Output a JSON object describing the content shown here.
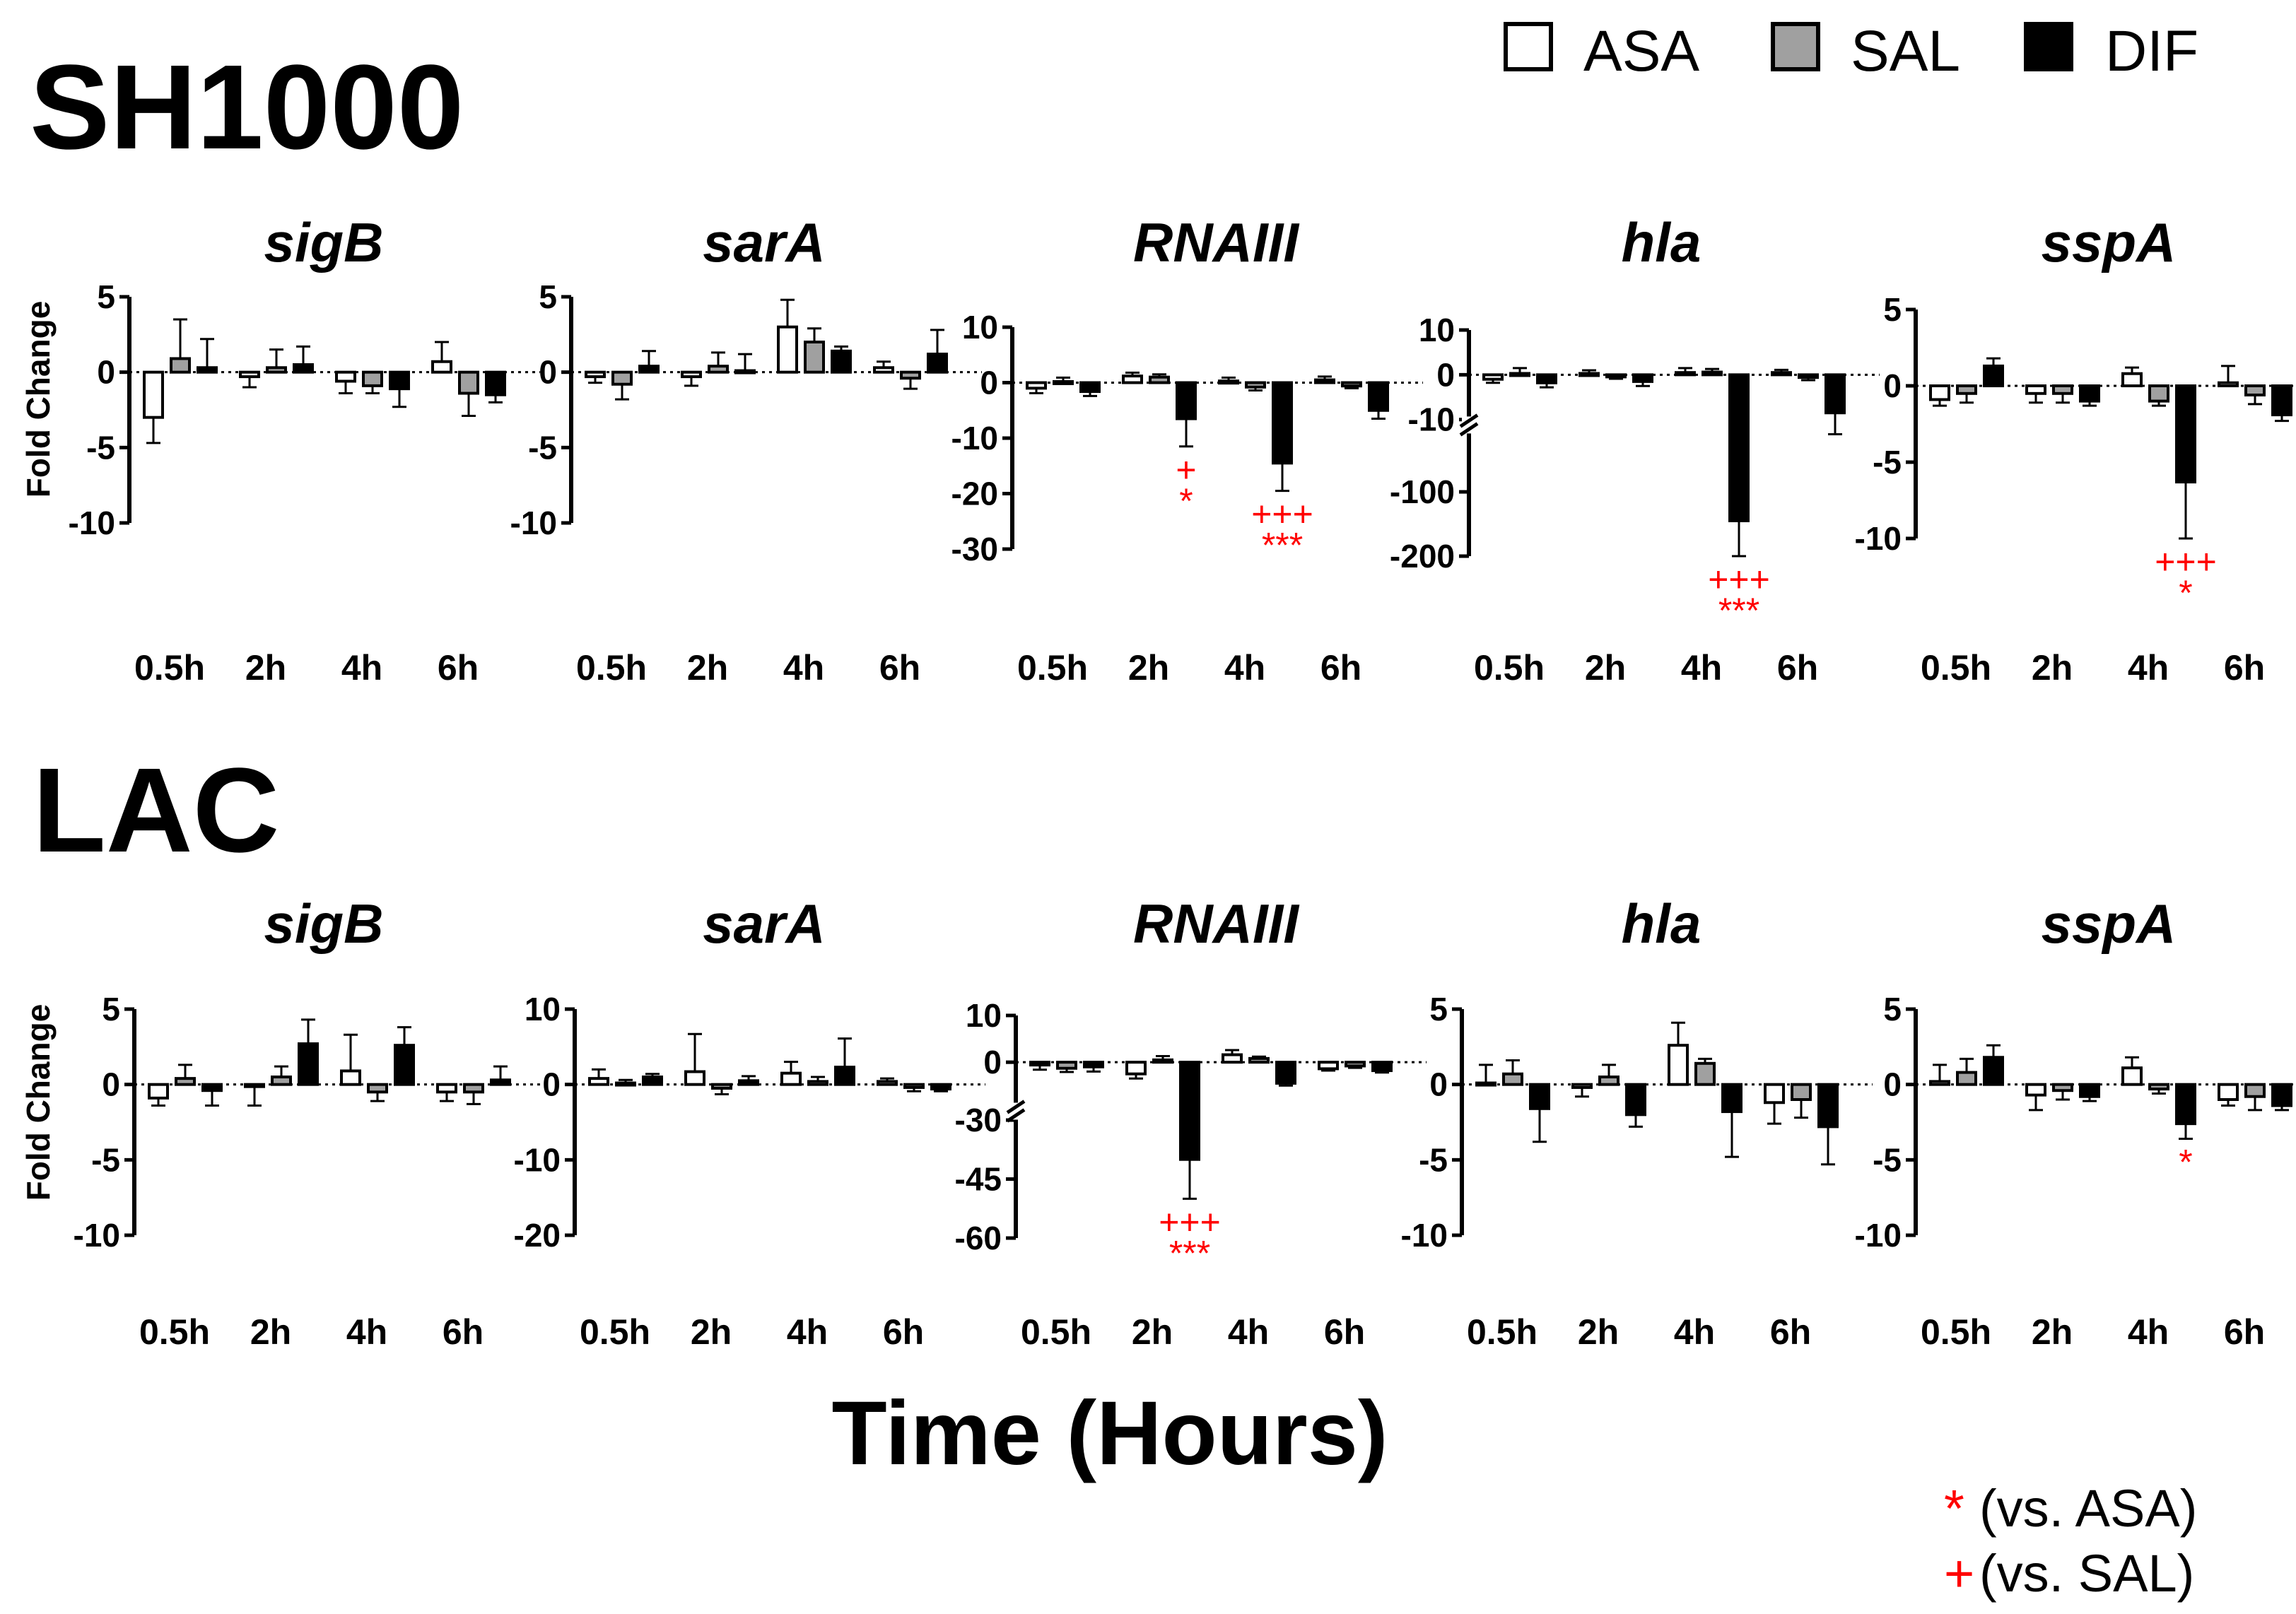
{
  "legend": [
    {
      "label": "ASA",
      "color": "#ffffff"
    },
    {
      "label": "SAL",
      "color": "#a0a0a0"
    },
    {
      "label": "DIF",
      "color": "#000000"
    }
  ],
  "x_axis_label": "Time (Hours)",
  "y_axis_label": "Fold Change",
  "notes": [
    {
      "symbol": "*",
      "text": "(vs. ASA)"
    },
    {
      "symbol": "+",
      "text": "(vs. SAL)"
    }
  ],
  "chart_data": [
    {
      "strain": "SH1000",
      "title": "sigB",
      "type": "bar",
      "categories": [
        "0.5h",
        "2h",
        "4h",
        "6h"
      ],
      "ylim": [
        -10,
        5
      ],
      "yticks": [
        "5",
        "0",
        "-5",
        "-10"
      ],
      "series": [
        {
          "name": "ASA",
          "values": [
            -3.0,
            -0.3,
            -0.6,
            0.7
          ],
          "err": [
            1.7,
            0.7,
            0.8,
            1.3
          ]
        },
        {
          "name": "SAL",
          "values": [
            0.9,
            0.3,
            -0.9,
            -1.4
          ],
          "err": [
            2.6,
            1.2,
            0.5,
            1.5
          ]
        },
        {
          "name": "DIF",
          "values": [
            0.3,
            0.5,
            -1.1,
            -1.5
          ],
          "err": [
            1.9,
            1.2,
            1.2,
            0.5
          ]
        }
      ],
      "marks": []
    },
    {
      "strain": "SH1000",
      "title": "sarA",
      "type": "bar",
      "categories": [
        "0.5h",
        "2h",
        "4h",
        "6h"
      ],
      "ylim": [
        -10,
        5
      ],
      "yticks": [
        "5",
        "0",
        "-5",
        "-10"
      ],
      "series": [
        {
          "name": "ASA",
          "values": [
            -0.3,
            -0.3,
            3.0,
            0.3
          ],
          "err": [
            0.4,
            0.6,
            1.8,
            0.4
          ]
        },
        {
          "name": "SAL",
          "values": [
            -0.8,
            0.4,
            2.0,
            -0.4
          ],
          "err": [
            1.0,
            0.9,
            0.9,
            0.7
          ]
        },
        {
          "name": "DIF",
          "values": [
            0.4,
            0.1,
            1.4,
            1.2
          ],
          "err": [
            1.0,
            1.1,
            0.3,
            1.6
          ]
        }
      ],
      "marks": []
    },
    {
      "strain": "SH1000",
      "title": "RNAIII",
      "type": "bar",
      "categories": [
        "0.5h",
        "2h",
        "4h",
        "6h"
      ],
      "ylim": [
        -30,
        10
      ],
      "yticks": [
        "10",
        "0",
        "-10",
        "-20",
        "-30"
      ],
      "series": [
        {
          "name": "ASA",
          "values": [
            -1.0,
            1.2,
            0.3,
            0.5
          ],
          "err": [
            0.9,
            0.6,
            0.6,
            0.6
          ]
        },
        {
          "name": "SAL",
          "values": [
            0.2,
            1.0,
            -0.8,
            -0.6
          ],
          "err": [
            0.7,
            0.5,
            0.6,
            0.4
          ]
        },
        {
          "name": "DIF",
          "values": [
            -1.6,
            -6.5,
            -14.5,
            -5.0
          ],
          "err": [
            0.8,
            5.0,
            5.0,
            1.5
          ]
        }
      ],
      "marks": [
        {
          "category": "2h",
          "series": "DIF",
          "lines": [
            "+",
            "*"
          ]
        },
        {
          "category": "4h",
          "series": "DIF",
          "lines": [
            "+++",
            "***"
          ]
        }
      ]
    },
    {
      "strain": "SH1000",
      "title": "hla",
      "type": "bar",
      "categories": [
        "0.5h",
        "2h",
        "4h",
        "6h"
      ],
      "ylim": [
        -200,
        10
      ],
      "yticks": [
        "10",
        "0",
        "-10",
        "-100",
        "-200"
      ],
      "series": [
        {
          "name": "ASA",
          "values": [
            -1.0,
            0.3,
            0.5,
            0.5
          ],
          "err": [
            0.8,
            0.7,
            1.0,
            0.6
          ]
        },
        {
          "name": "SAL",
          "values": [
            0.3,
            -0.4,
            0.6,
            -0.6
          ],
          "err": [
            1.2,
            0.5,
            0.7,
            0.6
          ]
        },
        {
          "name": "DIF",
          "values": [
            -1.8,
            -1.5,
            -145,
            -8.5
          ],
          "err": [
            1.0,
            1.0,
            55,
            1.8
          ]
        }
      ],
      "marks": [
        {
          "category": "4h",
          "series": "DIF",
          "lines": [
            "+++",
            "***"
          ]
        }
      ]
    },
    {
      "strain": "SH1000",
      "title": "sspA",
      "type": "bar",
      "categories": [
        "0.5h",
        "2h",
        "4h",
        "6h"
      ],
      "ylim": [
        -10,
        5
      ],
      "yticks": [
        "5",
        "0",
        "-5",
        "-10"
      ],
      "series": [
        {
          "name": "ASA",
          "values": [
            -0.9,
            -0.5,
            0.8,
            0.2
          ],
          "err": [
            0.4,
            0.6,
            0.4,
            1.1
          ]
        },
        {
          "name": "SAL",
          "values": [
            -0.5,
            -0.5,
            -1.0,
            -0.6
          ],
          "err": [
            0.6,
            0.6,
            0.3,
            0.6
          ]
        },
        {
          "name": "DIF",
          "values": [
            1.3,
            -1.0,
            -6.3,
            -1.9
          ],
          "err": [
            0.5,
            0.3,
            3.7,
            0.4
          ]
        }
      ],
      "marks": [
        {
          "category": "4h",
          "series": "DIF",
          "lines": [
            "+++",
            "*"
          ]
        }
      ]
    },
    {
      "strain": "LAC",
      "title": "sigB",
      "type": "bar",
      "categories": [
        "0.5h",
        "2h",
        "4h",
        "6h"
      ],
      "ylim": [
        -10,
        5
      ],
      "yticks": [
        "5",
        "0",
        "-5",
        "-10"
      ],
      "series": [
        {
          "name": "ASA",
          "values": [
            -0.9,
            -0.1,
            0.9,
            -0.5
          ],
          "err": [
            0.5,
            1.3,
            2.4,
            0.6
          ]
        },
        {
          "name": "SAL",
          "values": [
            0.4,
            0.5,
            -0.5,
            -0.5
          ],
          "err": [
            0.9,
            0.7,
            0.6,
            0.8
          ]
        },
        {
          "name": "DIF",
          "values": [
            -0.4,
            2.7,
            2.6,
            0.3
          ],
          "err": [
            1.0,
            1.6,
            1.2,
            0.9
          ]
        }
      ],
      "marks": []
    },
    {
      "strain": "LAC",
      "title": "sarA",
      "type": "bar",
      "categories": [
        "0.5h",
        "2h",
        "4h",
        "6h"
      ],
      "ylim": [
        -20,
        10
      ],
      "yticks": [
        "10",
        "0",
        "-10",
        "-20"
      ],
      "series": [
        {
          "name": "ASA",
          "values": [
            0.8,
            1.7,
            1.5,
            0.4
          ],
          "err": [
            1.2,
            5.0,
            1.5,
            0.4
          ]
        },
        {
          "name": "SAL",
          "values": [
            0.2,
            -0.5,
            0.4,
            -0.4
          ],
          "err": [
            0.4,
            0.8,
            0.6,
            0.5
          ]
        },
        {
          "name": "DIF",
          "values": [
            1.0,
            0.5,
            2.3,
            -0.6
          ],
          "err": [
            0.4,
            0.6,
            3.8,
            0.3
          ]
        }
      ],
      "marks": []
    },
    {
      "strain": "LAC",
      "title": "RNAIII",
      "type": "bar",
      "categories": [
        "0.5h",
        "2h",
        "4h",
        "6h"
      ],
      "ylim": [
        -60,
        10
      ],
      "yticks": [
        "10",
        "0",
        "-30",
        "-45",
        "-60"
      ],
      "series": [
        {
          "name": "ASA",
          "values": [
            -0.6,
            -2.5,
            1.6,
            -1.4
          ],
          "err": [
            1.0,
            1.0,
            1.0,
            0.4
          ]
        },
        {
          "name": "SAL",
          "values": [
            -1.3,
            0.5,
            0.8,
            -0.8
          ],
          "err": [
            0.8,
            0.8,
            0.4,
            0.4
          ]
        },
        {
          "name": "DIF",
          "values": [
            -1.0,
            -40,
            -4.5,
            -1.8
          ],
          "err": [
            1.0,
            10,
            0.5,
            0.4
          ]
        }
      ],
      "marks": [
        {
          "category": "2h",
          "series": "DIF",
          "lines": [
            "+++",
            "***"
          ]
        }
      ]
    },
    {
      "strain": "LAC",
      "title": "hla",
      "type": "bar",
      "categories": [
        "0.5h",
        "2h",
        "4h",
        "6h"
      ],
      "ylim": [
        -10,
        5
      ],
      "yticks": [
        "5",
        "0",
        "-5",
        "-10"
      ],
      "series": [
        {
          "name": "ASA",
          "values": [
            0.1,
            -0.2,
            2.6,
            -1.2
          ],
          "err": [
            1.2,
            0.6,
            1.5,
            1.4
          ]
        },
        {
          "name": "SAL",
          "values": [
            0.7,
            0.5,
            1.4,
            -1.0
          ],
          "err": [
            0.9,
            0.8,
            0.3,
            1.2
          ]
        },
        {
          "name": "DIF",
          "values": [
            -1.6,
            -2.0,
            -1.8,
            -2.8
          ],
          "err": [
            2.2,
            0.8,
            3.0,
            2.5
          ]
        }
      ],
      "marks": []
    },
    {
      "strain": "LAC",
      "title": "sspA",
      "type": "bar",
      "categories": [
        "0.5h",
        "2h",
        "4h",
        "6h"
      ],
      "ylim": [
        -10,
        5
      ],
      "yticks": [
        "5",
        "0",
        "-5",
        "-10"
      ],
      "series": [
        {
          "name": "ASA",
          "values": [
            0.2,
            -0.7,
            1.1,
            -1.0
          ],
          "err": [
            1.1,
            1.0,
            0.7,
            0.4
          ]
        },
        {
          "name": "SAL",
          "values": [
            0.8,
            -0.4,
            -0.3,
            -0.8
          ],
          "err": [
            0.9,
            0.6,
            0.3,
            0.9
          ]
        },
        {
          "name": "DIF",
          "values": [
            1.8,
            -0.8,
            -2.6,
            -1.4
          ],
          "err": [
            0.8,
            0.3,
            1.0,
            0.3
          ]
        }
      ],
      "marks": [
        {
          "category": "4h",
          "series": "DIF",
          "lines": [
            "*"
          ]
        }
      ]
    }
  ]
}
